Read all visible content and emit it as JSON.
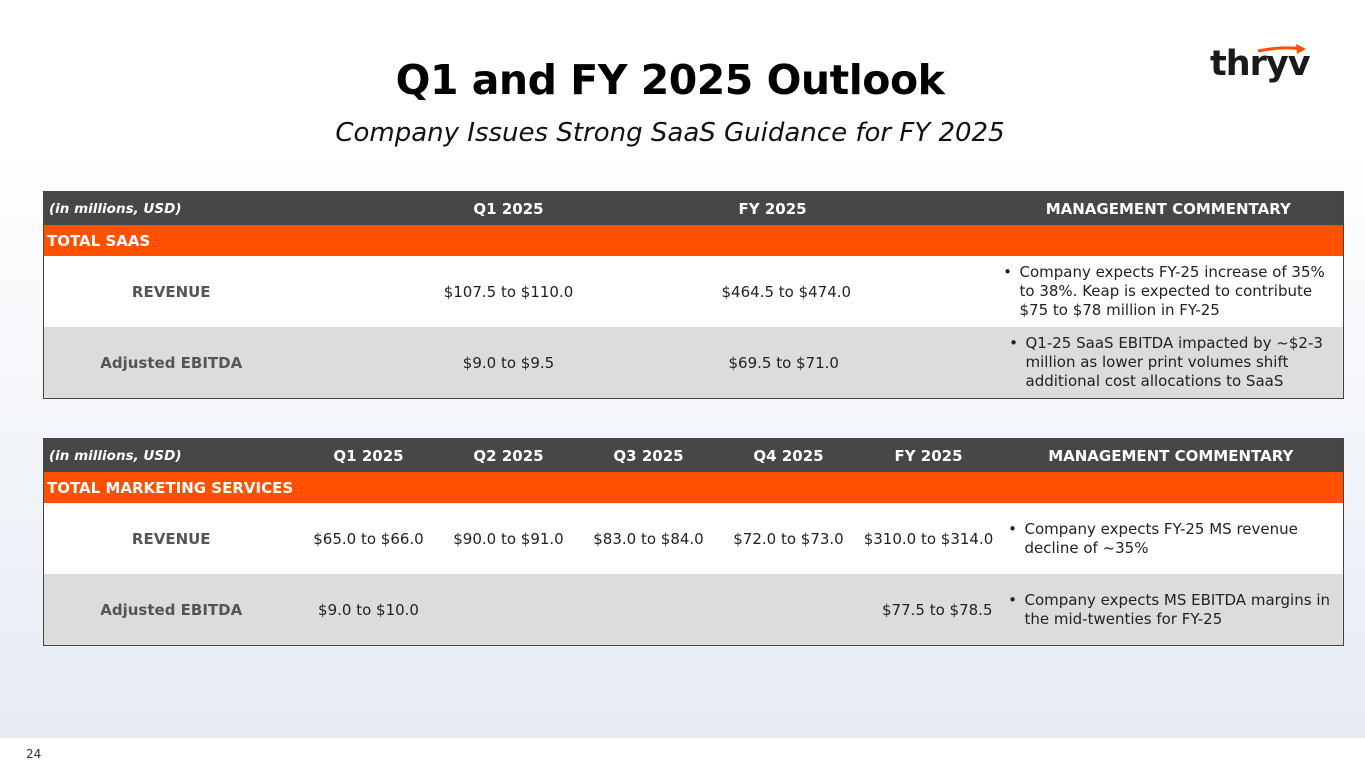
{
  "header": {
    "title": "Q1 and FY 2025 Outlook",
    "subtitle": "Company Issues Strong SaaS Guidance for FY 2025",
    "logo_text": "thryv"
  },
  "saas_table": {
    "headers": [
      "(in millions, USD)",
      "Q1 2025",
      "FY 2025",
      "MANAGEMENT COMMENTARY"
    ],
    "section": "TOTAL SAAS",
    "rows": [
      {
        "label": "REVENUE",
        "q1": "$107.5 to $110.0",
        "fy": "$464.5 to $474.0",
        "comment": "Company expects FY-25 increase of 35% to 38%. Keap is expected to contribute $75 to $78 million in FY-25"
      },
      {
        "label": "Adjusted EBITDA",
        "q1": "$9.0 to $9.5",
        "fy": "$69.5 to $71.0",
        "comment": "Q1-25 SaaS EBITDA impacted by ~$2-3 million as lower print volumes shift additional cost allocations to SaaS"
      }
    ]
  },
  "ms_table": {
    "headers": [
      "(in millions, USD)",
      "Q1 2025",
      "Q2 2025",
      "Q3 2025",
      "Q4 2025",
      "FY 2025",
      "MANAGEMENT COMMENTARY"
    ],
    "section": "TOTAL MARKETING SERVICES",
    "rows": [
      {
        "label": "REVENUE",
        "q1": "$65.0 to $66.0",
        "q2": "$90.0 to $91.0",
        "q3": "$83.0 to $84.0",
        "q4": "$72.0 to $73.0",
        "fy": "$310.0 to $314.0",
        "comment": "Company expects FY-25 MS revenue decline of ~35%"
      },
      {
        "label": "Adjusted EBITDA",
        "q1": "$9.0 to $10.0",
        "q2": "",
        "q3": "",
        "q4": "",
        "fy": "$77.5 to $78.5",
        "comment": "Company expects MS EBITDA margins in the mid-twenties for FY-25"
      }
    ]
  },
  "footer": {
    "page_number": "24"
  },
  "colors": {
    "accent": "#ff5000",
    "header_bg": "#474747",
    "row_grey": "#dcdcdc"
  }
}
